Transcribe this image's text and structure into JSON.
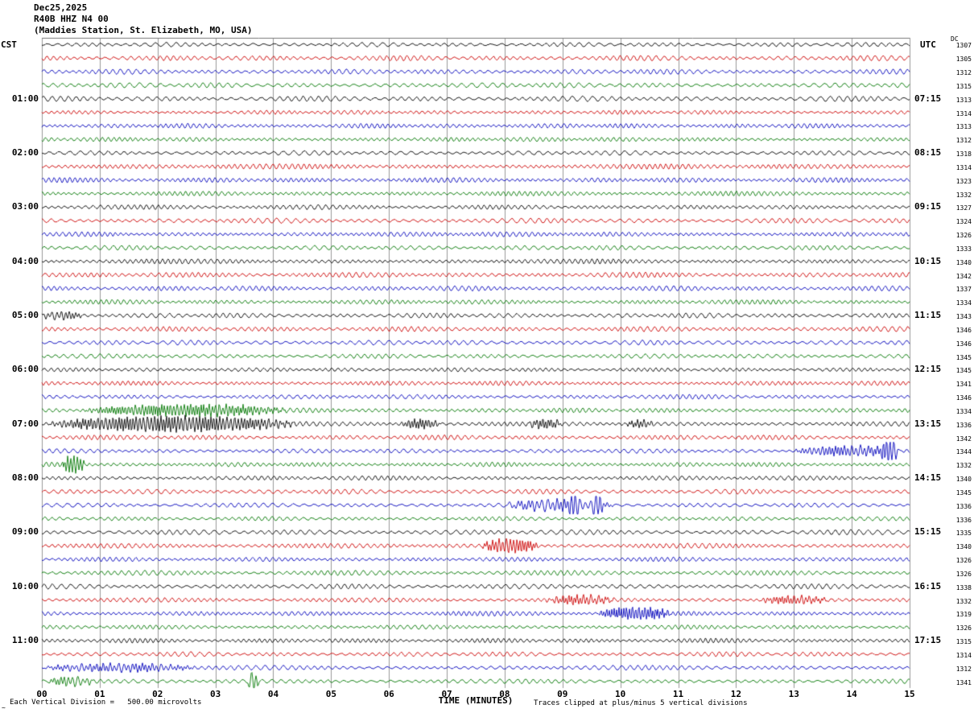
{
  "header": {
    "date": "Dec25,2025",
    "station": "R40B HHZ N4 00",
    "location": "(Maddies Station, St. Elizabeth, MO, USA)",
    "left_tz": "CST",
    "right_tz": "UTC",
    "dc_label": "DC"
  },
  "x_axis": {
    "label": "TIME (MINUTES)",
    "ticks": [
      "00",
      "01",
      "02",
      "03",
      "04",
      "05",
      "06",
      "07",
      "08",
      "09",
      "10",
      "11",
      "12",
      "13",
      "14",
      "15"
    ]
  },
  "footer": {
    "glyph": "~",
    "scale_note": "Each Vertical Division =   500.00 microvolts",
    "clip_note": "Traces clipped at plus/minus 5 vertical divisions"
  },
  "chart_data": {
    "type": "line",
    "title": "R40B HHZ N4 00 helicorder for Dec25,2025 (Maddies Station, St. Elizabeth, MO, USA)",
    "minutes_per_line": 15,
    "lines_per_hour": 4,
    "clip_divisions": 5,
    "colors": {
      "black": "#000000",
      "red": "#cc0000",
      "blue": "#0000bb",
      "green": "#007700"
    },
    "rows": [
      {
        "color": "black",
        "dc": "1307"
      },
      {
        "color": "red",
        "dc": "1305"
      },
      {
        "color": "blue",
        "dc": "1312"
      },
      {
        "color": "green",
        "dc": "1315"
      },
      {
        "color": "black",
        "left": "01:00",
        "right": "07:15",
        "dc": "1313"
      },
      {
        "color": "red",
        "dc": "1314"
      },
      {
        "color": "blue",
        "dc": "1313"
      },
      {
        "color": "green",
        "dc": "1312"
      },
      {
        "color": "black",
        "left": "02:00",
        "right": "08:15",
        "dc": "1318"
      },
      {
        "color": "red",
        "dc": "1314"
      },
      {
        "color": "blue",
        "dc": "1323"
      },
      {
        "color": "green",
        "dc": "1332"
      },
      {
        "color": "black",
        "left": "03:00",
        "right": "09:15",
        "dc": "1327"
      },
      {
        "color": "red",
        "dc": "1324"
      },
      {
        "color": "blue",
        "dc": "1326"
      },
      {
        "color": "green",
        "dc": "1333"
      },
      {
        "color": "black",
        "left": "04:00",
        "right": "10:15",
        "dc": "1340"
      },
      {
        "color": "red",
        "dc": "1342"
      },
      {
        "color": "blue",
        "dc": "1337"
      },
      {
        "color": "green",
        "dc": "1334"
      },
      {
        "color": "black",
        "left": "05:00",
        "right": "11:15",
        "dc": "1343",
        "bursts": [
          [
            0.0,
            0.7,
            1.6
          ]
        ]
      },
      {
        "color": "red",
        "dc": "1346"
      },
      {
        "color": "blue",
        "dc": "1346"
      },
      {
        "color": "green",
        "dc": "1345"
      },
      {
        "color": "black",
        "left": "06:00",
        "right": "12:15",
        "dc": "1345"
      },
      {
        "color": "red",
        "dc": "1341"
      },
      {
        "color": "blue",
        "dc": "1346"
      },
      {
        "color": "green",
        "dc": "1334",
        "bursts": [
          [
            0.7,
            4.3,
            2.4
          ]
        ]
      },
      {
        "color": "black",
        "left": "07:00",
        "right": "13:15",
        "dc": "1336",
        "bursts": [
          [
            0.1,
            4.4,
            3.2
          ],
          [
            6.2,
            6.9,
            2.0
          ],
          [
            8.4,
            9.0,
            1.9
          ],
          [
            10.1,
            10.6,
            1.5
          ]
        ]
      },
      {
        "color": "red",
        "dc": "1342"
      },
      {
        "color": "blue",
        "dc": "1344",
        "bursts": [
          [
            13.0,
            14.9,
            2.2
          ],
          [
            14.5,
            14.8,
            4.5
          ]
        ]
      },
      {
        "color": "green",
        "dc": "1332",
        "bursts": [
          [
            0.35,
            0.75,
            4.0
          ]
        ]
      },
      {
        "color": "black",
        "left": "08:00",
        "right": "14:15",
        "dc": "1340"
      },
      {
        "color": "red",
        "dc": "1345"
      },
      {
        "color": "blue",
        "dc": "1336",
        "bursts": [
          [
            8.0,
            9.9,
            2.4
          ],
          [
            9.1,
            9.3,
            4.0
          ],
          [
            9.5,
            9.7,
            4.0
          ]
        ]
      },
      {
        "color": "green",
        "dc": "1336"
      },
      {
        "color": "black",
        "left": "09:00",
        "right": "15:15",
        "dc": "1335"
      },
      {
        "color": "red",
        "dc": "1340",
        "bursts": [
          [
            7.6,
            8.6,
            2.8
          ]
        ]
      },
      {
        "color": "blue",
        "dc": "1326"
      },
      {
        "color": "green",
        "dc": "1326"
      },
      {
        "color": "black",
        "left": "10:00",
        "right": "16:15",
        "dc": "1338"
      },
      {
        "color": "red",
        "dc": "1332",
        "bursts": [
          [
            8.7,
            9.9,
            1.9
          ],
          [
            12.4,
            13.6,
            1.7
          ]
        ]
      },
      {
        "color": "blue",
        "dc": "1319",
        "bursts": [
          [
            9.6,
            10.9,
            2.6
          ]
        ]
      },
      {
        "color": "green",
        "dc": "1326"
      },
      {
        "color": "black",
        "left": "11:00",
        "right": "17:15",
        "dc": "1315"
      },
      {
        "color": "red",
        "dc": "1314"
      },
      {
        "color": "blue",
        "dc": "1312",
        "bursts": [
          [
            0.0,
            2.7,
            1.6
          ]
        ]
      },
      {
        "color": "green",
        "dc": "1341",
        "bursts": [
          [
            0.1,
            0.9,
            2.0
          ],
          [
            3.55,
            3.75,
            4.0
          ]
        ]
      }
    ]
  }
}
